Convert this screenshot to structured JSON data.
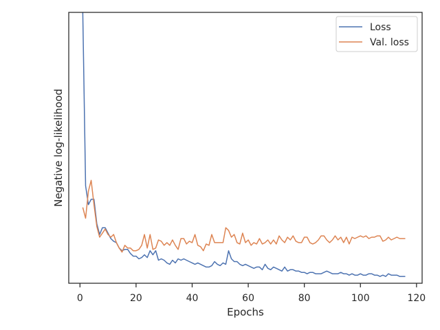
{
  "chart_data": {
    "type": "line",
    "xlabel": "Epochs",
    "ylabel": "Negative log-likelihood",
    "xlim": [
      -4,
      122
    ],
    "ylim": [
      0,
      100
    ],
    "x_ticks": [
      0,
      20,
      40,
      60,
      80,
      100,
      120
    ],
    "x_tick_labels": [
      "0",
      "20",
      "40",
      "60",
      "80",
      "100",
      "120"
    ],
    "y_ticks_shown": false,
    "grid": false,
    "legend": {
      "position": "top-right"
    },
    "series": [
      {
        "name": "Loss",
        "color": "#4c72b0",
        "x": [
          1,
          2,
          3,
          4,
          5,
          6,
          7,
          8,
          9,
          10,
          11,
          12,
          13,
          14,
          15,
          16,
          17,
          18,
          19,
          20,
          21,
          22,
          23,
          24,
          25,
          26,
          27,
          28,
          29,
          30,
          31,
          32,
          33,
          34,
          35,
          36,
          37,
          38,
          39,
          40,
          41,
          42,
          43,
          44,
          45,
          46,
          47,
          48,
          49,
          50,
          51,
          52,
          53,
          54,
          55,
          56,
          57,
          58,
          59,
          60,
          61,
          62,
          63,
          64,
          65,
          66,
          67,
          68,
          69,
          70,
          71,
          72,
          73,
          74,
          75,
          76,
          77,
          78,
          79,
          80,
          81,
          82,
          83,
          84,
          85,
          86,
          87,
          88,
          89,
          90,
          91,
          92,
          93,
          94,
          95,
          96,
          97,
          98,
          99,
          100,
          101,
          102,
          103,
          104,
          105,
          106,
          107,
          108,
          109,
          110,
          111,
          112,
          113,
          114,
          115,
          116
        ],
        "values": [
          100,
          36,
          29,
          31,
          31,
          22,
          18,
          20.5,
          20.5,
          18.5,
          16.5,
          15.5,
          15,
          13,
          12,
          12.5,
          12.5,
          11,
          10,
          10,
          9,
          9.5,
          10.5,
          9.5,
          12,
          10.5,
          12,
          8.5,
          9,
          8.5,
          7.5,
          7,
          8.5,
          7.5,
          9,
          8.5,
          9,
          8.5,
          8,
          7.5,
          7,
          7.5,
          7,
          6.5,
          6,
          6,
          6.5,
          8,
          7,
          6.5,
          7.5,
          7,
          12,
          9,
          8,
          8,
          7,
          6.5,
          7,
          6.5,
          6,
          5.5,
          6,
          6,
          5,
          7,
          5.5,
          5,
          6,
          5.5,
          5,
          4.5,
          6,
          4.5,
          5,
          5,
          4.5,
          4.5,
          4,
          4,
          3.5,
          4,
          4,
          3.5,
          3.5,
          3.5,
          4,
          4.5,
          4,
          3.5,
          3.5,
          3.5,
          4,
          3.5,
          3.5,
          3,
          3.5,
          3,
          3,
          3.5,
          3,
          3,
          3.5,
          3.5,
          3,
          3,
          2.5,
          3,
          2.5,
          3.5,
          3,
          3,
          3,
          2.5,
          2.5,
          2.5
        ]
      },
      {
        "name": "Val. loss",
        "color": "#dd8452",
        "x": [
          1,
          2,
          3,
          4,
          5,
          6,
          7,
          8,
          9,
          10,
          11,
          12,
          13,
          14,
          15,
          16,
          17,
          18,
          19,
          20,
          21,
          22,
          23,
          24,
          25,
          26,
          27,
          28,
          29,
          30,
          31,
          32,
          33,
          34,
          35,
          36,
          37,
          38,
          39,
          40,
          41,
          42,
          43,
          44,
          45,
          46,
          47,
          48,
          49,
          50,
          51,
          52,
          53,
          54,
          55,
          56,
          57,
          58,
          59,
          60,
          61,
          62,
          63,
          64,
          65,
          66,
          67,
          68,
          69,
          70,
          71,
          72,
          73,
          74,
          75,
          76,
          77,
          78,
          79,
          80,
          81,
          82,
          83,
          84,
          85,
          86,
          87,
          88,
          89,
          90,
          91,
          92,
          93,
          94,
          95,
          96,
          97,
          98,
          99,
          100,
          101,
          102,
          103,
          104,
          105,
          106,
          107,
          108,
          109,
          110,
          111,
          112,
          113,
          114,
          115,
          116
        ],
        "values": [
          28,
          24,
          34,
          38,
          29,
          21,
          17,
          18.5,
          20,
          18,
          17,
          18,
          15,
          13,
          11.5,
          14,
          13,
          13,
          12,
          12,
          12.5,
          14,
          18,
          13,
          18,
          12.5,
          13,
          16,
          15.5,
          14,
          15,
          14,
          16,
          14,
          12.5,
          16.5,
          16.5,
          14.5,
          15.5,
          15,
          18,
          14,
          13.5,
          12,
          14.5,
          14,
          18,
          15,
          15,
          15,
          15,
          20.5,
          19.5,
          17,
          18,
          15,
          14.5,
          18.5,
          15,
          16,
          14,
          15,
          14.5,
          16.5,
          14.5,
          15,
          16,
          14.5,
          16,
          14.5,
          17.5,
          16,
          15,
          17,
          16,
          17.5,
          15.5,
          15,
          15,
          17,
          17,
          15,
          14.5,
          15,
          16,
          17.5,
          17.5,
          16,
          15,
          16,
          17.5,
          16,
          17,
          15,
          17,
          14.5,
          17,
          16.5,
          17,
          17.5,
          17,
          17.5,
          16.5,
          17,
          17,
          17.5,
          17.5,
          15.5,
          16,
          17,
          16,
          16.5,
          17,
          16.5,
          16.5,
          16.5
        ]
      }
    ]
  }
}
